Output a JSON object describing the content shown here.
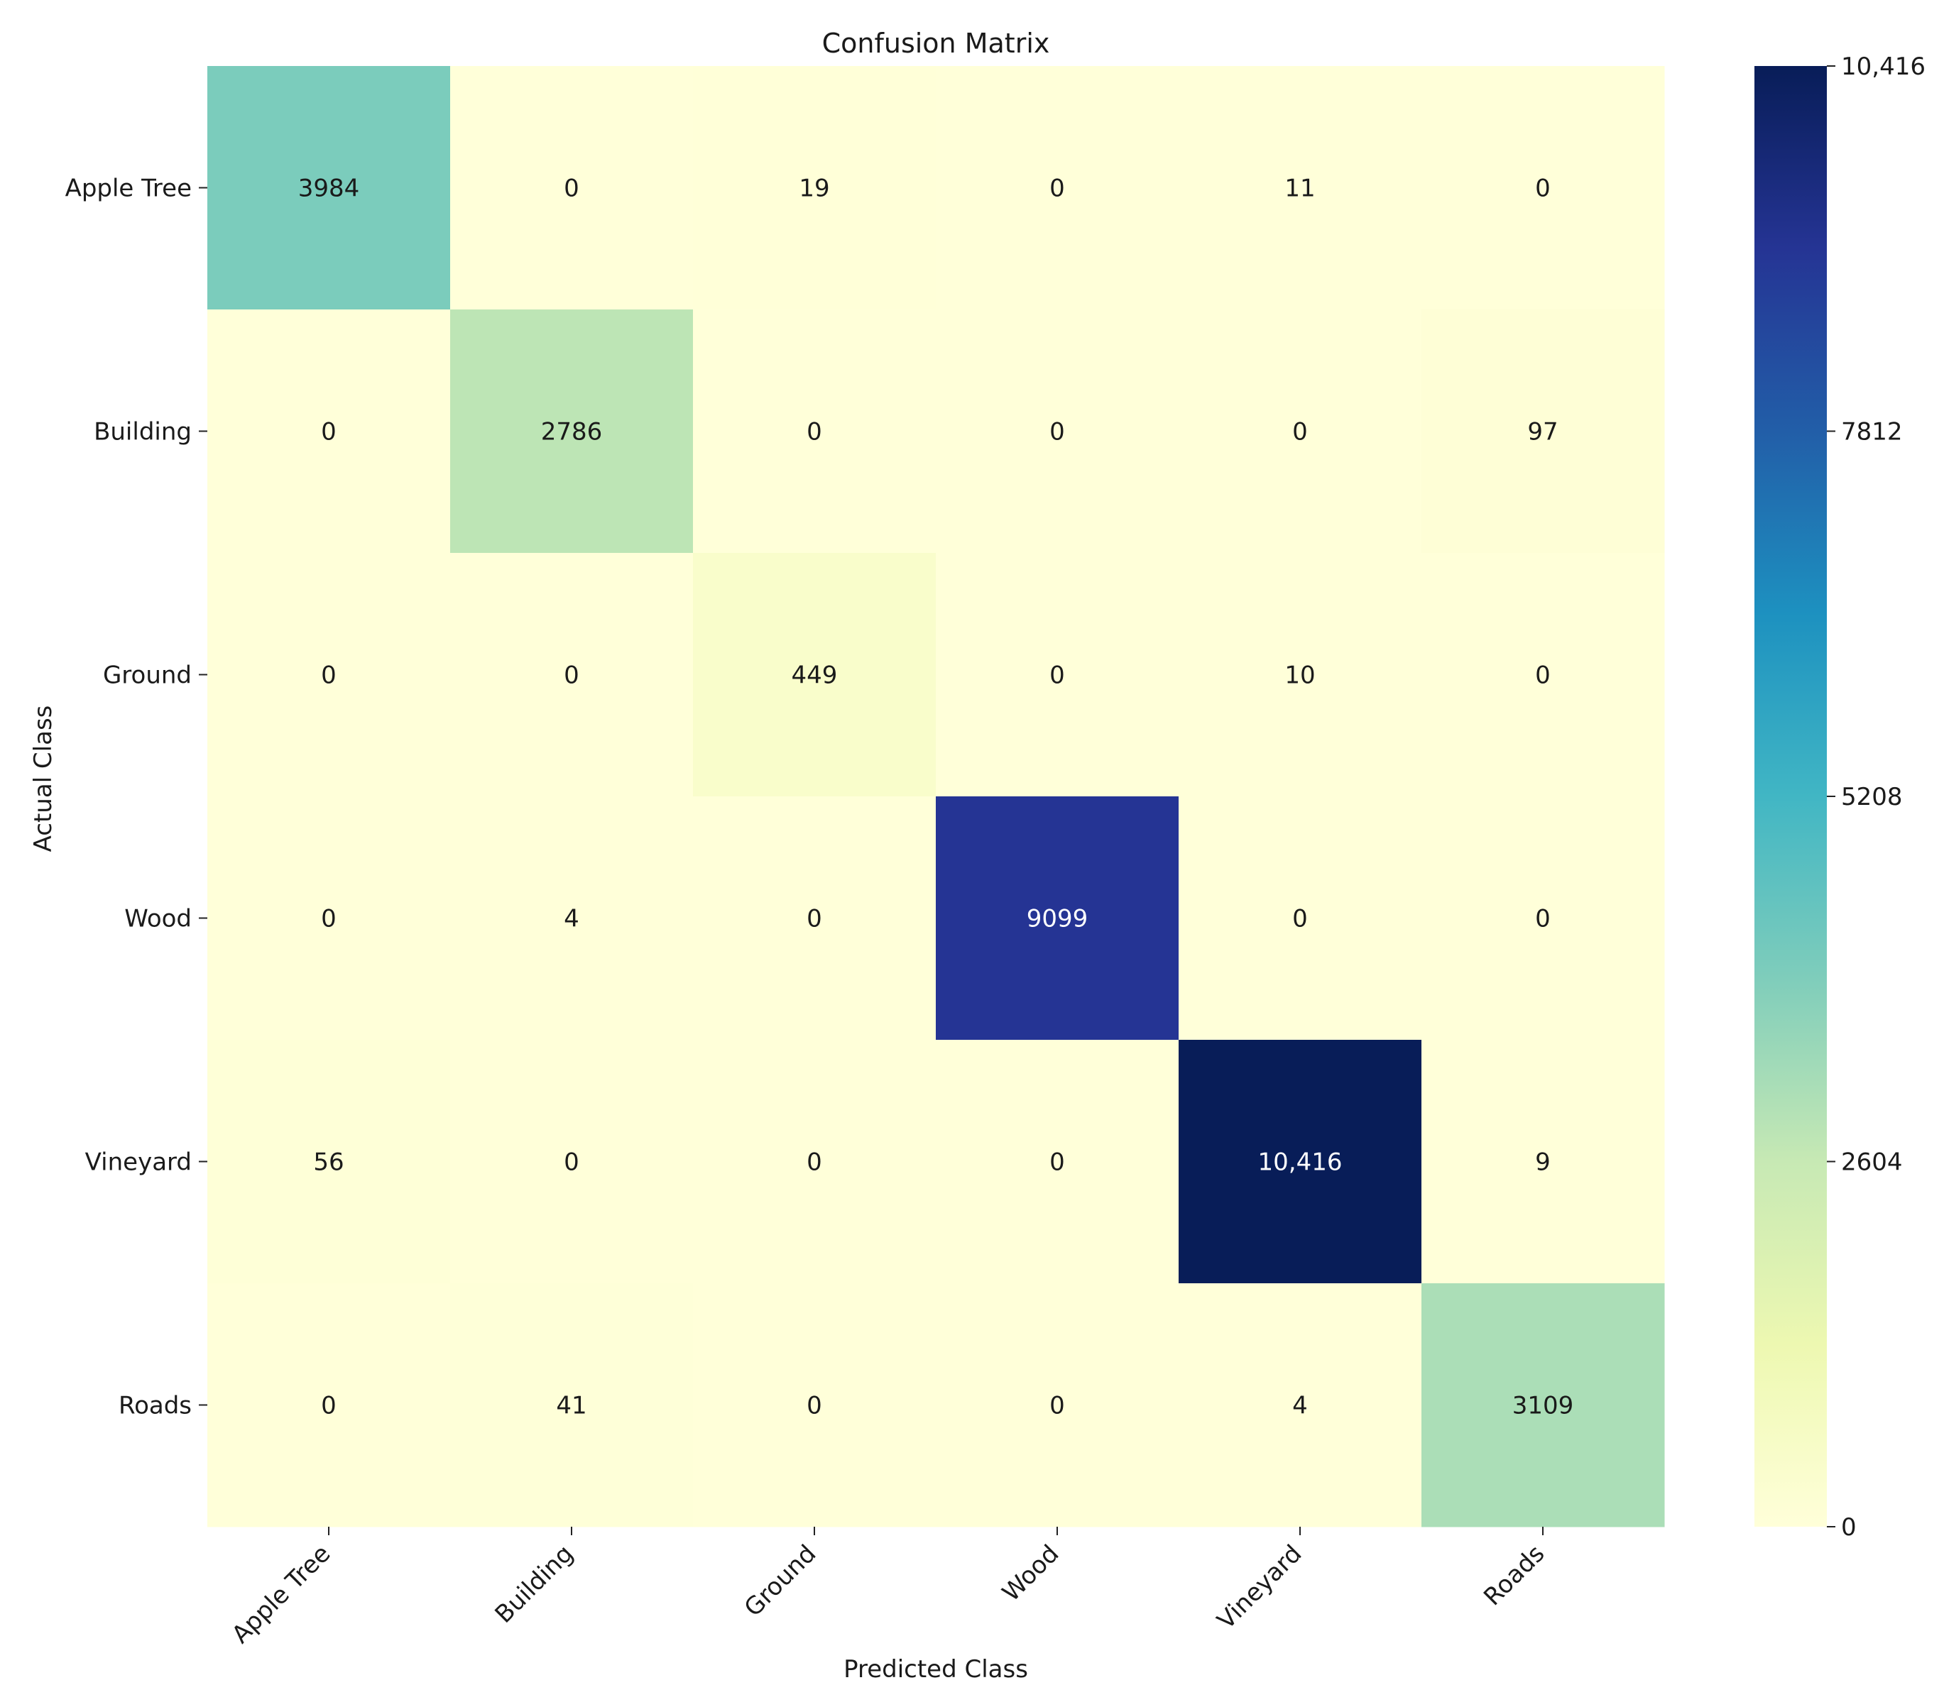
{
  "chart_data": {
    "type": "heatmap",
    "title": "Confusion Matrix",
    "xlabel": "Predicted Class",
    "ylabel": "Actual Class",
    "x_categories": [
      "Apple Tree",
      "Building",
      "Ground",
      "Wood",
      "Vineyard",
      "Roads"
    ],
    "y_categories": [
      "Apple Tree",
      "Building",
      "Ground",
      "Wood",
      "Vineyard",
      "Roads"
    ],
    "values": [
      [
        3984,
        0,
        19,
        0,
        11,
        0
      ],
      [
        0,
        2786,
        0,
        0,
        0,
        97
      ],
      [
        0,
        0,
        449,
        0,
        10,
        0
      ],
      [
        0,
        4,
        0,
        9099,
        0,
        0
      ],
      [
        56,
        0,
        0,
        0,
        10416,
        9
      ],
      [
        0,
        41,
        0,
        0,
        4,
        3109
      ]
    ],
    "cell_labels": [
      [
        "3984",
        "0",
        "19",
        "0",
        "11",
        "0"
      ],
      [
        "0",
        "2786",
        "0",
        "0",
        "0",
        "97"
      ],
      [
        "0",
        "0",
        "449",
        "0",
        "10",
        "0"
      ],
      [
        "0",
        "4",
        "0",
        "9099",
        "0",
        "0"
      ],
      [
        "56",
        "0",
        "0",
        "0",
        "10,416",
        "9"
      ],
      [
        "0",
        "41",
        "0",
        "0",
        "4",
        "3109"
      ]
    ],
    "colorbar": {
      "min": 0,
      "max": 10416,
      "ticks": [
        0,
        2604,
        5208,
        7812,
        10416
      ],
      "tick_labels": [
        "0",
        "2604",
        "5208",
        "7812",
        "10,416"
      ],
      "colormap": "YlGnBu"
    }
  }
}
